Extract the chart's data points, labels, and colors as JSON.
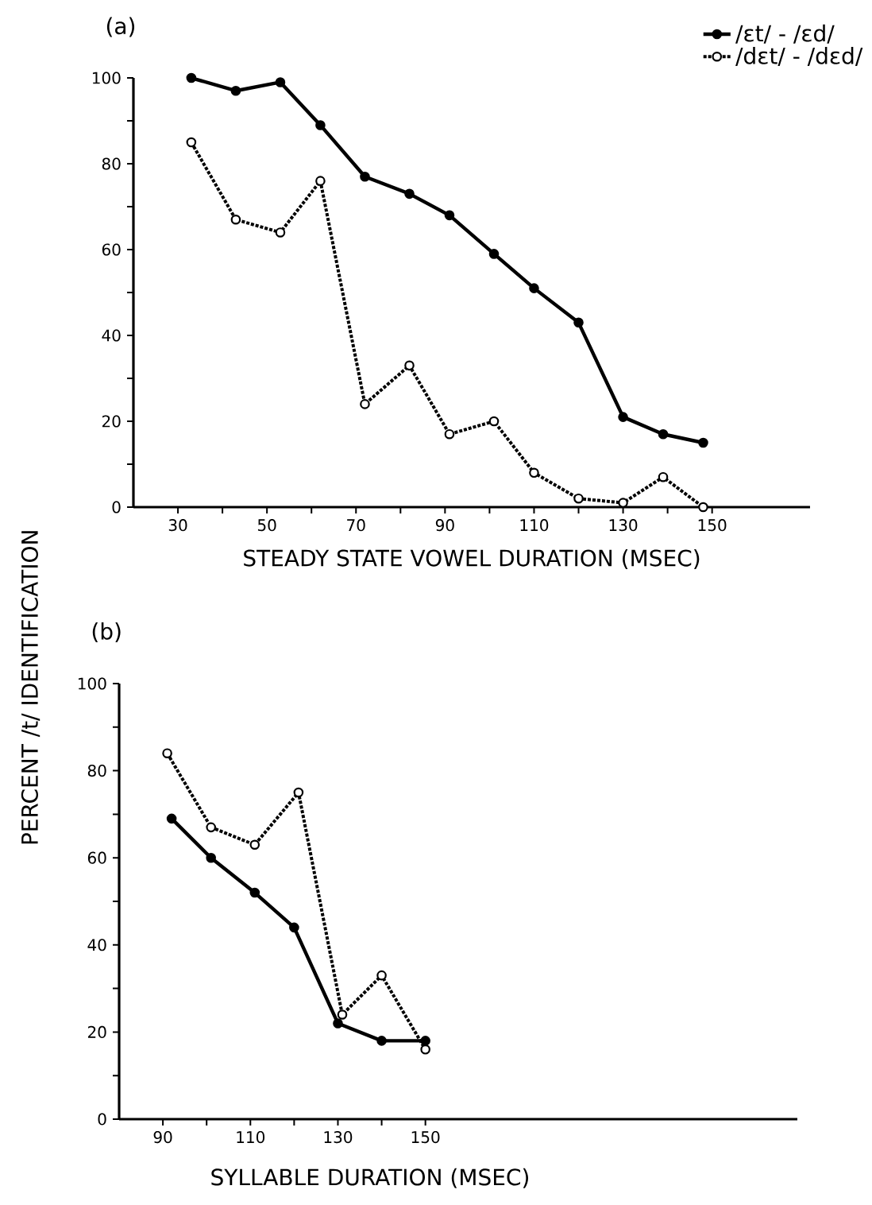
{
  "chart_data": [
    {
      "type": "line",
      "title": "(a)",
      "xlabel": "STEADY STATE VOWEL DURATION (MSEC)",
      "ylabel": "PERCENT /t/ IDENTIFICATION",
      "xlim": [
        20,
        172
      ],
      "ylim": [
        0,
        100
      ],
      "xticks": [
        30,
        {
          "value": 40,
          "label": null
        },
        50,
        {
          "value": 60,
          "label": null
        },
        70,
        {
          "value": 80,
          "label": null
        },
        90,
        {
          "value": 100,
          "label": null
        },
        110,
        {
          "value": 120,
          "label": null
        },
        130,
        {
          "value": 140,
          "label": null
        },
        150
      ],
      "yticks": [
        0,
        {
          "value": 10,
          "label": null
        },
        20,
        {
          "value": 30,
          "label": null
        },
        40,
        {
          "value": 50,
          "label": null
        },
        60,
        {
          "value": 70,
          "label": null
        },
        80,
        {
          "value": 90,
          "label": null
        },
        100
      ],
      "legend": "top right",
      "marker": "circle",
      "series": [
        {
          "name": "/ɛt/ - /ɛd/",
          "color": "#000000",
          "line_style": "solid",
          "x": [
            33,
            43,
            53,
            62,
            72,
            82,
            91,
            101,
            110,
            120,
            130,
            139,
            148
          ],
          "values": [
            100,
            97,
            99,
            89,
            77,
            73,
            68,
            59,
            51,
            43,
            21,
            17,
            15
          ]
        },
        {
          "name": "/dɛt/ - /dɛd/",
          "color": "#000000",
          "line_style": "dotted",
          "x": [
            33,
            43,
            53,
            62,
            72,
            82,
            91,
            101,
            110,
            120,
            130,
            139,
            148
          ],
          "values": [
            85,
            67,
            64,
            76,
            24,
            33,
            17,
            20,
            8,
            2,
            1,
            7,
            0
          ]
        }
      ]
    },
    {
      "type": "line",
      "title": "(b)",
      "xlabel": "SYLLABLE DURATION (MSEC)",
      "xlim": [
        80,
        235
      ],
      "ylim": [
        0,
        100
      ],
      "xticks": [
        90,
        {
          "value": 100,
          "label": null
        },
        110,
        {
          "value": 120,
          "label": null
        },
        130,
        {
          "value": 140,
          "label": null
        },
        150
      ],
      "yticks": [
        0,
        {
          "value": 10,
          "label": null
        },
        20,
        {
          "value": 30,
          "label": null
        },
        40,
        {
          "value": 50,
          "label": null
        },
        60,
        {
          "value": 70,
          "label": null
        },
        80,
        {
          "value": 90,
          "label": null
        },
        100
      ],
      "marker": "circle",
      "series": [
        {
          "color": "#000000",
          "line_style": "solid",
          "x": [
            92,
            101,
            111,
            120,
            130,
            140,
            150
          ],
          "values": [
            69,
            60,
            52,
            44,
            22,
            18,
            18
          ]
        },
        {
          "color": "#000000",
          "line_style": "dotted",
          "x": [
            91,
            101,
            111,
            121,
            131,
            140,
            150
          ],
          "values": [
            84,
            67,
            63,
            75,
            24,
            33,
            16
          ]
        }
      ]
    }
  ]
}
